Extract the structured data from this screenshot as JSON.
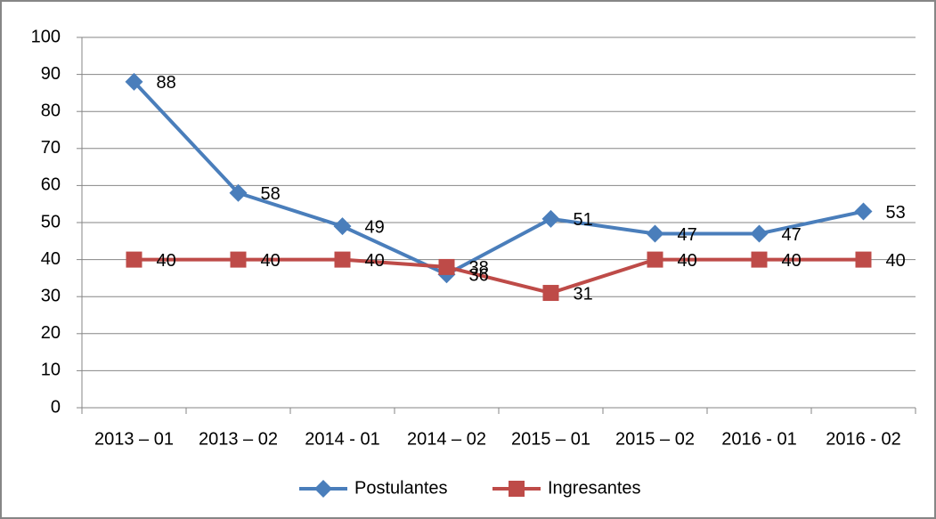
{
  "chart_data": {
    "type": "line",
    "categories": [
      "2013 – 01",
      "2013 – 02",
      "2014 - 01",
      "2014 – 02",
      "2015 – 01",
      "2015 – 02",
      "2016 - 01",
      "2016 - 02"
    ],
    "series": [
      {
        "name": "Postulantes",
        "color": "#4a7ebb",
        "marker": "diamond",
        "values": [
          88,
          58,
          49,
          36,
          51,
          47,
          47,
          53
        ]
      },
      {
        "name": "Ingresantes",
        "color": "#be4b48",
        "marker": "square",
        "values": [
          40,
          40,
          40,
          38,
          31,
          40,
          40,
          40
        ]
      }
    ],
    "ylim": [
      0,
      100
    ],
    "yticks": [
      0,
      10,
      20,
      30,
      40,
      50,
      60,
      70,
      80,
      90,
      100
    ],
    "grid": true,
    "legend": "bottom",
    "data_labels": true
  }
}
